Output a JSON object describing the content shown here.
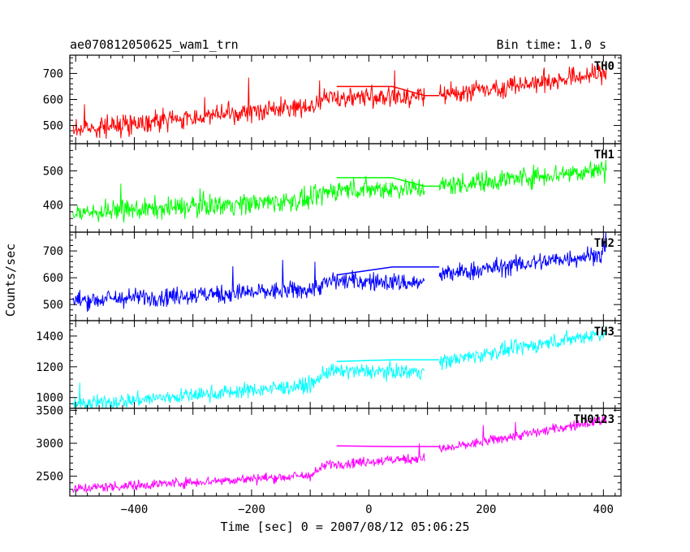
{
  "header": {
    "title": "ae070812050625_wam1_trn",
    "bin_time": "Bin time: 1.0 s"
  },
  "chart_data": {
    "type": "line",
    "xlabel": "Time [sec] 0 = 2007/08/12 05:06:25",
    "ylabel": "Counts/sec",
    "xlim": [
      -510,
      430
    ],
    "xticks": [
      -400,
      -200,
      0,
      200,
      400
    ],
    "x_tick_labels": [
      "−400",
      "−200",
      "0",
      "200",
      "400"
    ],
    "data_gap_seconds": [
      95,
      120
    ],
    "panels": [
      {
        "name": "TH0",
        "color": "#ff0000",
        "ylim": [
          430,
          770
        ],
        "yticks": [
          500,
          600,
          700
        ],
        "trend": [
          [
            -505,
            485
          ],
          [
            -100,
            575
          ],
          [
            -60,
            610
          ],
          [
            95,
            610
          ],
          [
            120,
            615
          ],
          [
            400,
            700
          ]
        ],
        "noise": 28,
        "step_line": [
          [
            -55,
            650
          ],
          [
            40,
            650
          ],
          [
            95,
            615
          ],
          [
            120,
            615
          ]
        ]
      },
      {
        "name": "TH1",
        "color": "#00ff00",
        "ylim": [
          320,
          580
        ],
        "yticks": [
          400,
          500
        ],
        "trend": [
          [
            -505,
            375
          ],
          [
            -100,
            415
          ],
          [
            -60,
            445
          ],
          [
            95,
            450
          ],
          [
            120,
            455
          ],
          [
            400,
            505
          ]
        ],
        "noise": 22,
        "step_line": [
          [
            -55,
            480
          ],
          [
            40,
            480
          ],
          [
            95,
            455
          ],
          [
            120,
            455
          ]
        ]
      },
      {
        "name": "TH2",
        "color": "#0000ff",
        "ylim": [
          440,
          770
        ],
        "yticks": [
          500,
          600,
          700
        ],
        "trend": [
          [
            -505,
            515
          ],
          [
            -100,
            555
          ],
          [
            -60,
            590
          ],
          [
            95,
            580
          ],
          [
            120,
            610
          ],
          [
            400,
            690
          ]
        ],
        "noise": 25,
        "step_line": [
          [
            -55,
            610
          ],
          [
            40,
            640
          ],
          [
            95,
            640
          ],
          [
            120,
            640
          ]
        ]
      },
      {
        "name": "TH3",
        "color": "#00ffff",
        "ylim": [
          930,
          1500
        ],
        "yticks": [
          1000,
          1200,
          1400
        ],
        "trend": [
          [
            -505,
            950
          ],
          [
            -100,
            1080
          ],
          [
            -70,
            1170
          ],
          [
            95,
            1170
          ],
          [
            120,
            1230
          ],
          [
            400,
            1420
          ]
        ],
        "noise": 35,
        "step_line": [
          [
            -55,
            1235
          ],
          [
            40,
            1245
          ],
          [
            95,
            1245
          ],
          [
            120,
            1245
          ]
        ]
      },
      {
        "name": "TH0123",
        "color": "#ff00ff",
        "ylim": [
          2200,
          3530
        ],
        "yticks": [
          2500,
          3000,
          3500
        ],
        "trend": [
          [
            -505,
            2310
          ],
          [
            -100,
            2510
          ],
          [
            -70,
            2680
          ],
          [
            95,
            2780
          ],
          [
            120,
            2900
          ],
          [
            400,
            3350
          ]
        ],
        "noise": 55,
        "step_line": [
          [
            -55,
            2960
          ],
          [
            40,
            2950
          ],
          [
            95,
            2950
          ],
          [
            120,
            2950
          ]
        ]
      }
    ]
  }
}
